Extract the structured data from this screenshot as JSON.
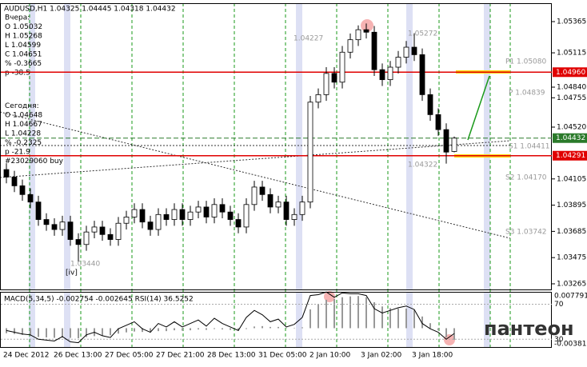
{
  "chart_data": {
    "type": "candlestick",
    "title": "AUDUSD,H1  1.04325 1.04445 1.04318 1.04432",
    "info_lines": [
      "Вчера:",
      "O 1.05032",
      "H 1.05268",
      "L 1.04599",
      "C 1.04651",
      "% -0.3665",
      "p -38.5",
      "Сегодня:",
      "O 1.04648",
      "H 1.04667",
      "L 1.04228",
      "% -0.2325",
      "p -21.9",
      "#23029060 buy"
    ],
    "annotations": [
      "1.04227",
      "1.05272",
      "1.04322",
      "1.03440",
      "[iv]",
      "P1 1.05080",
      "P 1.04839",
      "S1 1.04411",
      "S2 1.04170",
      "S3 1.03742"
    ],
    "open": [
      1.0418,
      1.0412,
      1.0405,
      1.0398,
      1.0392,
      1.0378,
      1.0374,
      1.037,
      1.0376,
      1.0362,
      1.0358,
      1.0368,
      1.0372,
      1.0366,
      1.0362,
      1.0375,
      1.038,
      1.0386,
      1.0376,
      1.037,
      1.0382,
      1.0378,
      1.0386,
      1.0378,
      1.0384,
      1.0388,
      1.038,
      1.039,
      1.0384,
      1.0378,
      1.0372,
      1.039,
      1.0404,
      1.0398,
      1.0388,
      1.0392,
      1.0378,
      1.0382,
      1.0392,
      1.0472,
      1.0478,
      1.0495,
      1.0488,
      1.0512,
      1.0522,
      1.053,
      1.0528,
      1.0498,
      1.049,
      1.05,
      1.0508,
      1.0516,
      1.051,
      1.0478,
      1.0462,
      1.045,
      1.04325
    ],
    "high": [
      1.0423,
      1.0417,
      1.041,
      1.0403,
      1.0397,
      1.0383,
      1.0379,
      1.0381,
      1.0381,
      1.0367,
      1.0373,
      1.0377,
      1.0377,
      1.0371,
      1.038,
      1.0385,
      1.0391,
      1.0391,
      1.0381,
      1.0387,
      1.0387,
      1.0391,
      1.0391,
      1.0389,
      1.0393,
      1.0393,
      1.0395,
      1.0395,
      1.0389,
      1.0383,
      1.0395,
      1.0409,
      1.0409,
      1.0403,
      1.0397,
      1.0397,
      1.0387,
      1.0397,
      1.0477,
      1.0483,
      1.05,
      1.05,
      1.0517,
      1.0527,
      1.05335,
      1.0535,
      1.0533,
      1.0503,
      1.0505,
      1.0513,
      1.0521,
      1.05272,
      1.0515,
      1.0483,
      1.0467,
      1.0455,
      1.04445
    ],
    "low": [
      1.0407,
      1.04,
      1.0393,
      1.0387,
      1.0373,
      1.0369,
      1.0365,
      1.0365,
      1.0357,
      1.0344,
      1.0353,
      1.0363,
      1.0361,
      1.0357,
      1.0357,
      1.037,
      1.0375,
      1.0371,
      1.0365,
      1.0365,
      1.0373,
      1.0373,
      1.0373,
      1.0373,
      1.0379,
      1.0375,
      1.0375,
      1.0379,
      1.0373,
      1.0367,
      1.0367,
      1.0385,
      1.0393,
      1.0383,
      1.0383,
      1.0373,
      1.0373,
      1.0377,
      1.0387,
      1.0467,
      1.0473,
      1.0483,
      1.0483,
      1.0507,
      1.0517,
      1.0523,
      1.0493,
      1.0485,
      1.0485,
      1.0495,
      1.0503,
      1.0505,
      1.0473,
      1.0457,
      1.0445,
      1.04228,
      1.04318
    ],
    "close": [
      1.0412,
      1.0405,
      1.0398,
      1.0392,
      1.0378,
      1.0374,
      1.037,
      1.0376,
      1.0362,
      1.0358,
      1.0368,
      1.0372,
      1.0366,
      1.0362,
      1.0375,
      1.038,
      1.0386,
      1.0376,
      1.037,
      1.0382,
      1.0378,
      1.0386,
      1.0378,
      1.0384,
      1.0388,
      1.038,
      1.039,
      1.0384,
      1.0378,
      1.0372,
      1.039,
      1.0404,
      1.0398,
      1.0388,
      1.0392,
      1.0378,
      1.0382,
      1.0392,
      1.0472,
      1.0478,
      1.0495,
      1.0488,
      1.0512,
      1.0522,
      1.053,
      1.0528,
      1.0498,
      1.049,
      1.05,
      1.0508,
      1.0516,
      1.051,
      1.0478,
      1.0462,
      1.045,
      1.0432,
      1.04432
    ],
    "ylim": [
      1.0322,
      1.05506
    ],
    "yticks": [
      1.05365,
      1.05115,
      {
        "value": 1.0484,
        "label": "1.04840"
      },
      1.04755,
      {
        "value": 1.0452,
        "label": "1.04520"
      },
      1.04105,
      1.03895,
      1.03685,
      1.03475,
      1.03265
    ],
    "levels": [
      {
        "value": 1.0496,
        "label": "1.04960",
        "color": "#e00000"
      },
      {
        "value": 1.04432,
        "label": "1.04432",
        "color": "#2a7a2a"
      },
      {
        "value": 1.04291,
        "label": "1.04291",
        "color": "#e00000"
      }
    ],
    "x_labels": [
      "24 Dec 2012",
      "26 Dec 13:00",
      "27 Dec 05:00",
      "27 Dec 21:00",
      "28 Dec 13:00",
      "31 Dec 05:00",
      "2 Jan 10:00",
      "3 Jan 02:00",
      "3 Jan 18:00"
    ],
    "indicator_title": "MACD(5,34,5) -0.002754 -0.002645  RSI(14) 36.5252",
    "macd": [
      -0.0012,
      -0.0014,
      -0.0016,
      -0.0018,
      -0.0021,
      -0.0022,
      -0.0023,
      -0.0022,
      -0.0023,
      -0.0024,
      -0.0021,
      -0.0019,
      -0.0018,
      -0.0017,
      -0.0013,
      -0.001,
      -0.0008,
      -0.0009,
      -0.001,
      -0.0007,
      -0.0007,
      -0.0005,
      -0.0006,
      -0.0005,
      -0.0003,
      -0.0004,
      -0.0002,
      -0.0003,
      -0.0004,
      -0.0006,
      -0.0002,
      0.0004,
      0.0005,
      0.0003,
      0.0003,
      0.0001,
      0.0001,
      0.0002,
      0.0045,
      0.0058,
      0.0068,
      0.007,
      0.0074,
      0.0076,
      0.0077,
      0.0074,
      0.0062,
      0.0052,
      0.0048,
      0.0047,
      0.0047,
      0.0044,
      0.0028,
      0.0012,
      -0.0005,
      -0.0022,
      -0.002754
    ],
    "macd_lim": [
      -0.0045,
      0.0085
    ],
    "macd_ticks": [
      0.007791,
      -0.003811
    ],
    "rsi": [
      40,
      38,
      36,
      35,
      30,
      29,
      28,
      33,
      27,
      26,
      35,
      38,
      34,
      32,
      42,
      46,
      50,
      42,
      38,
      48,
      44,
      50,
      44,
      48,
      52,
      45,
      54,
      48,
      44,
      40,
      55,
      63,
      58,
      50,
      53,
      44,
      47,
      55,
      80,
      81,
      84,
      78,
      83,
      82,
      82,
      80,
      65,
      60,
      63,
      66,
      68,
      64,
      48,
      42,
      38,
      30,
      36.5252
    ],
    "rsi_lim": [
      21.1,
      83.3
    ],
    "rsi_ticks": [
      70,
      30
    ],
    "logo": "пантеон"
  }
}
